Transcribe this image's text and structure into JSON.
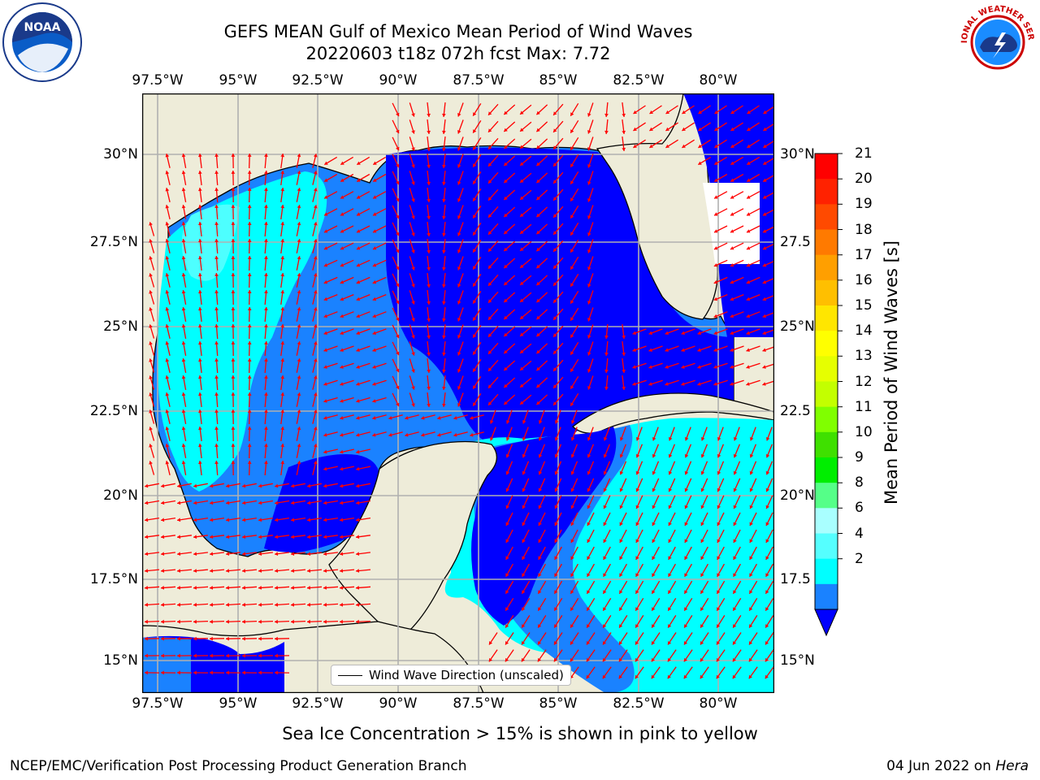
{
  "title": {
    "line1": "GEFS MEAN Gulf of Mexico Mean Period of Wind Waves",
    "line2": "20220603 t18z 072h fcst   Max: 7.72"
  },
  "logos": {
    "left": "NOAA",
    "right": "NATIONAL WEATHER SERVICE"
  },
  "map": {
    "lon_labels": [
      "97.5°W",
      "95°W",
      "92.5°W",
      "90°W",
      "87.5°W",
      "85°W",
      "82.5°W",
      "80°W"
    ],
    "lat_labels": [
      "30°N",
      "27.5°N",
      "25°N",
      "22.5°N",
      "20°N",
      "17.5°N",
      "15°N"
    ],
    "lat_labels_right": [
      "30°N",
      "27.5",
      "25°N",
      "22.5",
      "20°N",
      "17.5",
      "15°N"
    ],
    "legend": "Wind Wave Direction (unscaled)",
    "colors": {
      "land": "#eeecd9",
      "ocean_2_4": "#1a82ff",
      "ocean_under_2": "#0000ff",
      "ocean_4_6": "#00ffff",
      "ocean_6_8": "#4dffff",
      "arrow": "#ff0000"
    }
  },
  "colorbar": {
    "ticks": [
      "21",
      "20",
      "19",
      "18",
      "17",
      "16",
      "15",
      "14",
      "13",
      "12",
      "11",
      "10",
      "9",
      "8",
      "6",
      "4",
      "2"
    ],
    "label": "Mean Period of Wind Waves [s]",
    "colors": [
      "#ff0000",
      "#ff2200",
      "#ff4a00",
      "#ff7a00",
      "#ff9f00",
      "#ffbf00",
      "#ffe600",
      "#ffff00",
      "#e6ff00",
      "#c3ff00",
      "#80ff00",
      "#3fe000",
      "#00ee00",
      "#55ff88",
      "#a9ffff",
      "#55ffff",
      "#00ffff",
      "#1a82ff"
    ],
    "under_color": "#0000ff"
  },
  "caption": "Sea Ice Concentration > 15% is shown in pink to yellow",
  "footer": {
    "left": "NCEP/EMC/Verification Post Processing Product Generation Branch",
    "right_date": "04 Jun 2022 on ",
    "right_host": "Hera"
  }
}
